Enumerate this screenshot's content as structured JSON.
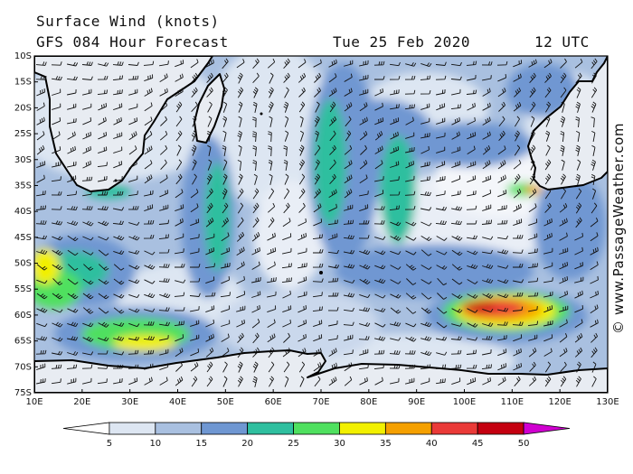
{
  "header": {
    "title": "Surface Wind (knots)",
    "forecast": "GFS 084 Hour Forecast",
    "date": "Tue 25 Feb 2020",
    "time": "12 UTC"
  },
  "copyright": "© www.PassageWeather.com",
  "latitude_labels": [
    "10S",
    "15S",
    "20S",
    "25S",
    "30S",
    "35S",
    "40S",
    "45S",
    "50S",
    "55S",
    "60S",
    "65S",
    "70S",
    "75S"
  ],
  "longitude_labels": [
    "10E",
    "20E",
    "30E",
    "40E",
    "50E",
    "60E",
    "70E",
    "80E",
    "90E",
    "100E",
    "110E",
    "120E",
    "130E"
  ],
  "legend": {
    "ticks": [
      "5",
      "10",
      "15",
      "20",
      "25",
      "30",
      "35",
      "40",
      "45",
      "50"
    ],
    "colors": [
      "#ffffff",
      "#dde6f2",
      "#a9c0e0",
      "#6f97d2",
      "#2fbf9f",
      "#4fe05f",
      "#f2f000",
      "#f5a000",
      "#ea3a38",
      "#c40010",
      "#d000d0"
    ]
  },
  "colors": {
    "land": "#e8ecf2",
    "coast": "#000000",
    "calm": "#f2f5f9"
  }
}
